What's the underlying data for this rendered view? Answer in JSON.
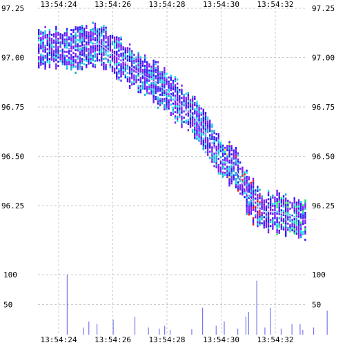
{
  "chart_data": [
    {
      "type": "heatmap",
      "description_kind": "order-book depth heatmap with mid-price trace",
      "x_ticks": [
        "13:54:24",
        "13:54:26",
        "13:54:28",
        "13:54:30",
        "13:54:32"
      ],
      "y_ticks": [
        "97.25",
        "97.00",
        "96.75",
        "96.50",
        "96.25"
      ],
      "y_tick_values": [
        97.25,
        97.0,
        96.75,
        96.5,
        96.25
      ],
      "ylim": [
        96.06,
        97.25
      ],
      "grid": true,
      "grid_style": "dashed",
      "colors": {
        "deep": "#2a18f0",
        "mid": "#7a1cf5",
        "cyan": "#17d8ec",
        "teal": "#13aad6",
        "green": "#19f25a",
        "red": "#f21414",
        "yellow": "#f0e21a",
        "trace": "#e8e0ff"
      },
      "price_trace": {
        "x_seconds": [
          0,
          0.5,
          1.0,
          1.5,
          2.0,
          2.5,
          3.0,
          3.5,
          4.0,
          4.5,
          5.0,
          5.5,
          6.0,
          6.5,
          7.0,
          7.5,
          8.0,
          8.5,
          9.0,
          9.5
        ],
        "y": [
          97.05,
          97.04,
          97.06,
          97.07,
          97.02,
          96.97,
          96.92,
          96.88,
          96.83,
          96.76,
          96.7,
          96.6,
          96.48,
          96.45,
          96.3,
          96.22,
          96.22,
          96.2,
          96.18,
          96.18
        ]
      }
    },
    {
      "type": "bar",
      "description_kind": "volume",
      "x_ticks": [
        "13:54:24",
        "13:54:26",
        "13:54:28",
        "13:54:30",
        "13:54:32"
      ],
      "y_ticks": [
        "100",
        "50"
      ],
      "y_tick_values": [
        100,
        50
      ],
      "ylim": [
        0,
        100
      ],
      "grid": true,
      "bar_color": "#7777ee",
      "x_seconds": [
        0.3,
        0.9,
        1.4,
        2.0,
        2.8,
        3.3,
        3.7,
        4.1,
        4.9,
        5.3,
        5.8,
        6.1,
        6.6,
        7.0,
        7.3,
        7.6,
        7.8,
        8.2,
        8.6,
        9.0,
        9.4,
        9.9,
        1.1,
        3.9,
        6.9,
        8.9
      ],
      "values": [
        100,
        12,
        18,
        25,
        30,
        12,
        10,
        8,
        9,
        45,
        15,
        22,
        10,
        38,
        90,
        12,
        45,
        10,
        18,
        8,
        12,
        40,
        22,
        15,
        30,
        18
      ]
    }
  ]
}
